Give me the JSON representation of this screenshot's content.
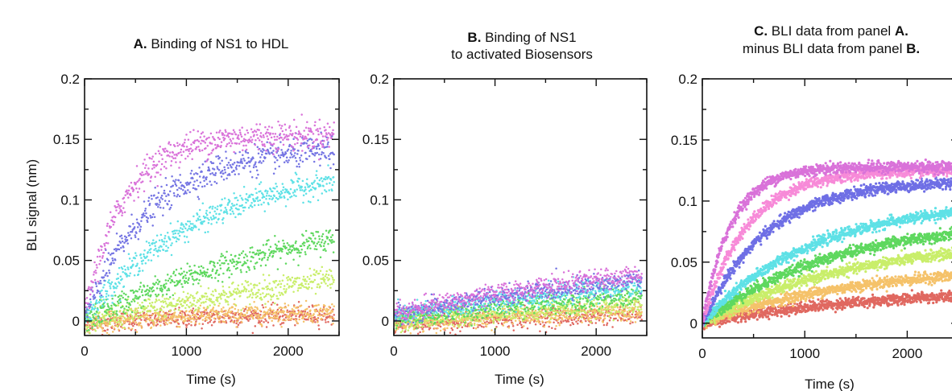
{
  "chart_data": [
    {
      "type": "scatter",
      "title_bold": "A.",
      "title_rest": " Binding of NS1 to HDL",
      "title_line2": "",
      "xlabel": "Time (s)",
      "ylabel": "BLI signal (nm)",
      "xlim": [
        0,
        2500
      ],
      "ylim": [
        -0.012,
        0.2
      ],
      "xticks": [
        "0",
        "1000",
        "2000"
      ],
      "yticks": [
        "0",
        "0.05",
        "0.1",
        "0.15",
        "0.2"
      ],
      "series": [
        {
          "color": "#d972d9",
          "amplitude": 0.15,
          "tau": 380,
          "offset": 0.004,
          "noise": 0.006
        },
        {
          "color": "#7575e3",
          "amplitude": 0.142,
          "tau": 650,
          "offset": 0.002,
          "noise": 0.006
        },
        {
          "color": "#5ee1e6",
          "amplitude": 0.128,
          "tau": 1150,
          "offset": 0.002,
          "noise": 0.005
        },
        {
          "color": "#5fd85f",
          "amplitude": 0.11,
          "tau": 2550,
          "offset": 0.0,
          "noise": 0.005
        },
        {
          "color": "#c9ee6a",
          "amplitude": 0.07,
          "tau": 3400,
          "offset": -0.002,
          "noise": 0.005
        },
        {
          "color": "#f5c26a",
          "amplitude": 0.012,
          "tau": 1200,
          "offset": -0.003,
          "noise": 0.004
        },
        {
          "color": "#e06860",
          "amplitude": 0.008,
          "tau": 1200,
          "offset": -0.002,
          "noise": 0.004
        }
      ]
    },
    {
      "type": "scatter",
      "title_bold": "B.",
      "title_rest": " Binding of NS1",
      "title_line2": "to activated Biosensors",
      "xlabel": "Time (s)",
      "ylabel": "",
      "xlim": [
        0,
        2500
      ],
      "ylim": [
        -0.012,
        0.2
      ],
      "xticks": [
        "0",
        "1000",
        "2000"
      ],
      "yticks": [
        "0",
        "0.05",
        "0.1",
        "0.15",
        "0.2"
      ],
      "series": [
        {
          "color": "#d972d9",
          "amplitude": 0.06,
          "tau": 3200,
          "offset": 0.006,
          "noise": 0.004
        },
        {
          "color": "#7575e3",
          "amplitude": 0.055,
          "tau": 3300,
          "offset": 0.005,
          "noise": 0.004
        },
        {
          "color": "#5ee1e6",
          "amplitude": 0.048,
          "tau": 3400,
          "offset": 0.004,
          "noise": 0.004
        },
        {
          "color": "#5fd85f",
          "amplitude": 0.04,
          "tau": 3600,
          "offset": 0.001,
          "noise": 0.004
        },
        {
          "color": "#c9ee6a",
          "amplitude": 0.03,
          "tau": 3700,
          "offset": -0.001,
          "noise": 0.004
        },
        {
          "color": "#f5c26a",
          "amplitude": 0.02,
          "tau": 3800,
          "offset": -0.002,
          "noise": 0.004
        },
        {
          "color": "#e06860",
          "amplitude": 0.018,
          "tau": 3800,
          "offset": -0.003,
          "noise": 0.004
        }
      ]
    },
    {
      "type": "scatter",
      "title_bold": "C.",
      "title_rest": " BLI data from panel ",
      "title_bold2": "A.",
      "title_line2": "minus BLI data from panel ",
      "title_line2_bold": "B.",
      "xlabel": "Time (s)",
      "ylabel": "",
      "xlim": [
        0,
        2500
      ],
      "ylim": [
        -0.012,
        0.2
      ],
      "xticks": [
        "0",
        "1000",
        "2000"
      ],
      "yticks": [
        "0",
        "0.05",
        "0.1",
        "0.15",
        "0.2"
      ],
      "series": [
        {
          "color": "#d972d9",
          "amplitude": 0.128,
          "tau": 280,
          "offset": 0.0,
          "noise": 0.0022
        },
        {
          "color": "#f78ad8",
          "amplitude": 0.125,
          "tau": 430,
          "offset": 0.0,
          "noise": 0.0022
        },
        {
          "color": "#6f6fe5",
          "amplitude": 0.117,
          "tau": 620,
          "offset": 0.0,
          "noise": 0.0022
        },
        {
          "color": "#5ee1e6",
          "amplitude": 0.1,
          "tau": 1050,
          "offset": 0.0,
          "noise": 0.0022
        },
        {
          "color": "#5fd85f",
          "amplitude": 0.085,
          "tau": 1250,
          "offset": 0.0,
          "noise": 0.0022
        },
        {
          "color": "#c9ee6a",
          "amplitude": 0.07,
          "tau": 1450,
          "offset": 0.0,
          "noise": 0.0022
        },
        {
          "color": "#f5c26a",
          "amplitude": 0.048,
          "tau": 1500,
          "offset": 0.0,
          "noise": 0.0022
        },
        {
          "color": "#e06860",
          "amplitude": 0.028,
          "tau": 1600,
          "offset": 0.0,
          "noise": 0.0022
        }
      ]
    }
  ]
}
